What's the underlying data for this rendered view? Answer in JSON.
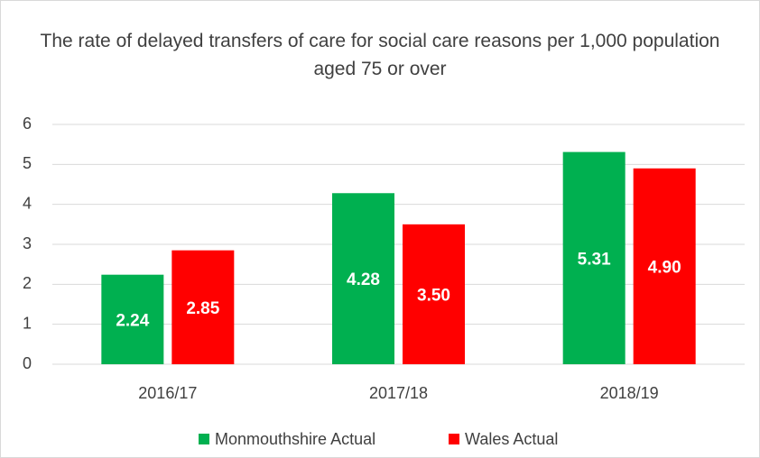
{
  "chart_data": {
    "type": "bar",
    "title": "The rate of delayed transfers of care for social care reasons per 1,000 population aged 75 or over",
    "categories": [
      "2016/17",
      "2017/18",
      "2018/19"
    ],
    "series": [
      {
        "name": "Monmouthshire Actual",
        "color": "#00b050",
        "values": [
          2.24,
          4.28,
          5.31
        ],
        "value_labels": [
          "2.24",
          "4.28",
          "5.31"
        ]
      },
      {
        "name": "Wales Actual",
        "color": "#ff0000",
        "values": [
          2.85,
          3.5,
          4.9
        ],
        "value_labels": [
          "2.85",
          "3.50",
          "4.90"
        ]
      }
    ],
    "ylim": [
      0,
      6
    ],
    "yticks": [
      0,
      1,
      2,
      3,
      4,
      5,
      6
    ],
    "grid": true,
    "legend": "bottom"
  }
}
